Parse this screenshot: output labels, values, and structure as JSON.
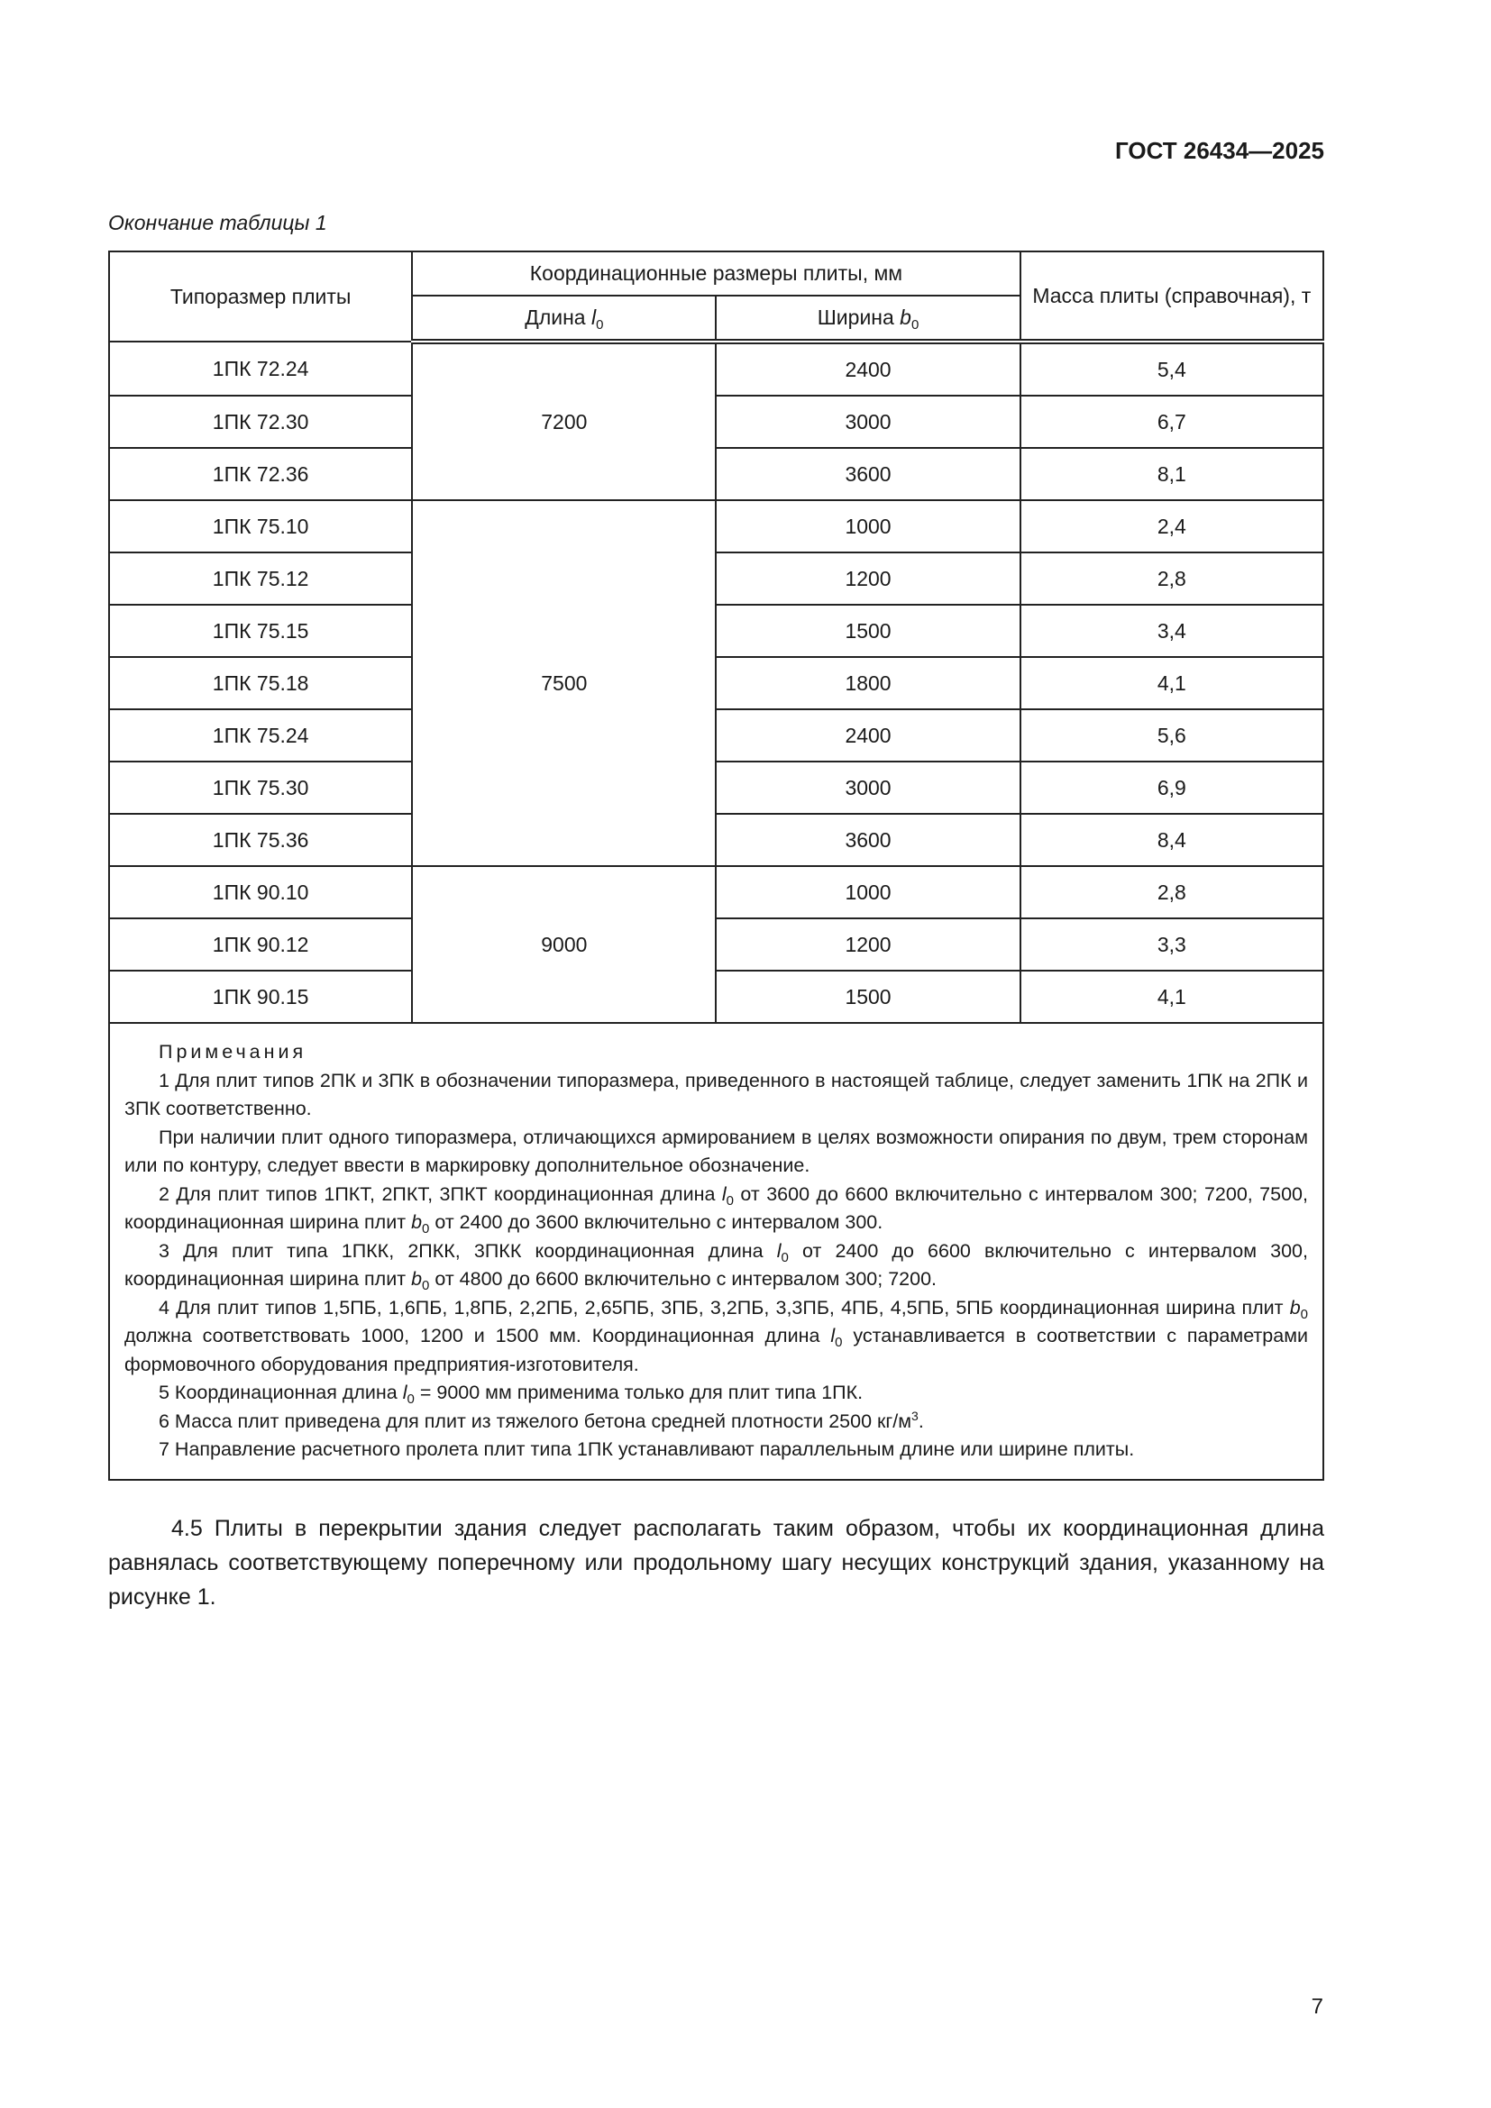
{
  "header": {
    "doc_code": "ГОСТ 26434—2025"
  },
  "caption": "Окончание таблицы 1",
  "table": {
    "col_type": "Типоразмер плиты",
    "col_group": "Координационные размеры плиты, мм",
    "col_length": {
      "label": "Длина ",
      "var": "l",
      "sub": "0"
    },
    "col_width": {
      "label": "Ширина ",
      "var": "b",
      "sub": "0"
    },
    "col_mass": "Масса плиты (справочная), т",
    "groups": [
      {
        "length": "7200",
        "rows": [
          {
            "type": "1ПК 72.24",
            "width": "2400",
            "mass": "5,4"
          },
          {
            "type": "1ПК 72.30",
            "width": "3000",
            "mass": "6,7"
          },
          {
            "type": "1ПК 72.36",
            "width": "3600",
            "mass": "8,1"
          }
        ]
      },
      {
        "length": "7500",
        "rows": [
          {
            "type": "1ПК 75.10",
            "width": "1000",
            "mass": "2,4"
          },
          {
            "type": "1ПК 75.12",
            "width": "1200",
            "mass": "2,8"
          },
          {
            "type": "1ПК 75.15",
            "width": "1500",
            "mass": "3,4"
          },
          {
            "type": "1ПК 75.18",
            "width": "1800",
            "mass": "4,1"
          },
          {
            "type": "1ПК 75.24",
            "width": "2400",
            "mass": "5,6"
          },
          {
            "type": "1ПК 75.30",
            "width": "3000",
            "mass": "6,9"
          },
          {
            "type": "1ПК 75.36",
            "width": "3600",
            "mass": "8,4"
          }
        ]
      },
      {
        "length": "9000",
        "rows": [
          {
            "type": "1ПК 90.10",
            "width": "1000",
            "mass": "2,8"
          },
          {
            "type": "1ПК 90.12",
            "width": "1200",
            "mass": "3,3"
          },
          {
            "type": "1ПК 90.15",
            "width": "1500",
            "mass": "4,1"
          }
        ]
      }
    ]
  },
  "notes": {
    "title": "Примечания",
    "items": [
      [
        {
          "t": "1 Для плит типов 2ПК и 3ПК в обозначении типоразмера, приведенного в настоящей таблице, следует заменить 1ПК на 2ПК и 3ПК соответственно."
        }
      ],
      [
        {
          "t": "При наличии плит одного типоразмера, отличающихся армированием в целях возможности опирания по двум, трем сторонам или по контуру, следует ввести в маркировку дополнительное обозначение."
        }
      ],
      [
        {
          "t": "2 Для плит типов 1ПКТ, 2ПКТ, 3ПКТ координационная длина "
        },
        {
          "v": "l",
          "s": "0"
        },
        {
          "t": " от 3600 до 6600 включительно с интервалом 300; 7200, 7500, координационная ширина плит "
        },
        {
          "v": "b",
          "s": "0"
        },
        {
          "t": " от 2400 до 3600 включительно с интервалом 300."
        }
      ],
      [
        {
          "t": "3 Для плит типа 1ПКК, 2ПКК, 3ПКК координационная длина "
        },
        {
          "v": "l",
          "s": "0"
        },
        {
          "t": " от 2400 до 6600 включительно с интервалом 300, координационная ширина плит "
        },
        {
          "v": "b",
          "s": "0"
        },
        {
          "t": " от 4800 до 6600 включительно с интервалом 300; 7200."
        }
      ],
      [
        {
          "t": "4 Для плит типов 1,5ПБ, 1,6ПБ, 1,8ПБ, 2,2ПБ, 2,65ПБ, 3ПБ, 3,2ПБ, 3,3ПБ, 4ПБ, 4,5ПБ, 5ПБ координационная ширина плит "
        },
        {
          "v": "b",
          "s": "0"
        },
        {
          "t": " должна соответствовать 1000, 1200 и 1500 мм. Координационная длина "
        },
        {
          "v": "l",
          "s": "0"
        },
        {
          "t": " устанавливается в соответствии с параметрами формовочного оборудования предприятия-изготовителя."
        }
      ],
      [
        {
          "t": "5 Координационная длина "
        },
        {
          "v": "l",
          "s": "0"
        },
        {
          "t": " = 9000 мм применима только для плит типа 1ПК."
        }
      ],
      [
        {
          "t": "6 Масса плит приведена для плит из тяжелого бетона средней плотности 2500 кг/м"
        },
        {
          "sup": "3"
        },
        {
          "t": "."
        }
      ],
      [
        {
          "t": "7 Направление расчетного пролета плит типа 1ПК устанавливают параллельным длине или ширине плиты."
        }
      ]
    ]
  },
  "paragraph": "4.5 Плиты в перекрытии здания следует располагать таким образом, чтобы их координационная длина равнялась соответствующему поперечному или продольному шагу несущих конструкций здания, указанному на рисунке 1.",
  "page_number": "7"
}
